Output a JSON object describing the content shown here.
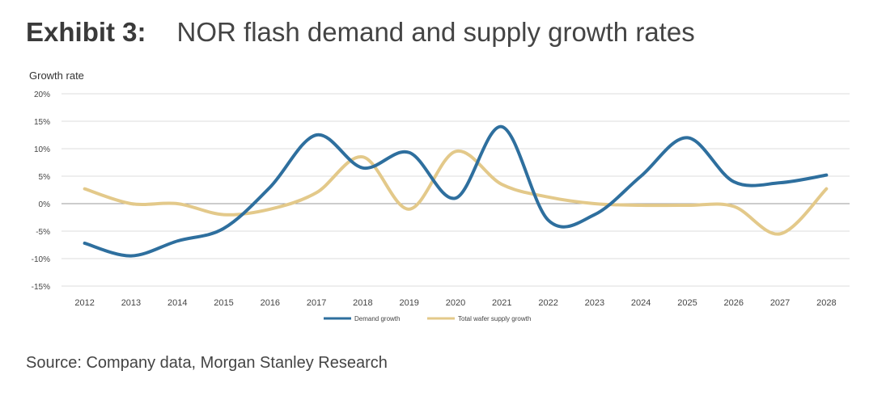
{
  "header": {
    "exhibit_label": "Exhibit 3:",
    "title": "NOR flash demand and supply growth rates"
  },
  "footer": {
    "source": "Source: Company data, Morgan Stanley Research"
  },
  "chart_data": {
    "type": "line",
    "title": "NOR flash demand and supply growth rates",
    "ylabel": "Growth rate",
    "xlabel": "",
    "categories": [
      "2012",
      "2013",
      "2014",
      "2015",
      "2016",
      "2017",
      "2018",
      "2019",
      "2020",
      "2021",
      "2022",
      "2023",
      "2024",
      "2025",
      "2026",
      "2027",
      "2028"
    ],
    "ylim": [
      -15,
      20
    ],
    "yticks": [
      -15,
      -10,
      -5,
      0,
      5,
      10,
      15,
      20
    ],
    "ytick_labels": [
      "-15%",
      "-10%",
      "-5%",
      "0%",
      "5%",
      "10%",
      "15%",
      "20%"
    ],
    "grid": true,
    "legend_position": "bottom",
    "series": [
      {
        "name": "Demand growth",
        "color": "#2e6f9e",
        "values": [
          -7.2,
          -9.5,
          -6.8,
          -4.5,
          3.0,
          12.5,
          6.5,
          9.3,
          1.0,
          14.0,
          -3.0,
          -2.0,
          5.0,
          12.0,
          4.0,
          3.8,
          5.2
        ]
      },
      {
        "name": "Total wafer supply growth",
        "color": "#e3c98a",
        "values": [
          2.7,
          0.0,
          0.0,
          -2.0,
          -1.0,
          2.0,
          8.5,
          -1.0,
          9.5,
          3.5,
          1.2,
          0.0,
          -0.3,
          -0.3,
          -0.5,
          -5.5,
          2.7
        ]
      }
    ]
  }
}
